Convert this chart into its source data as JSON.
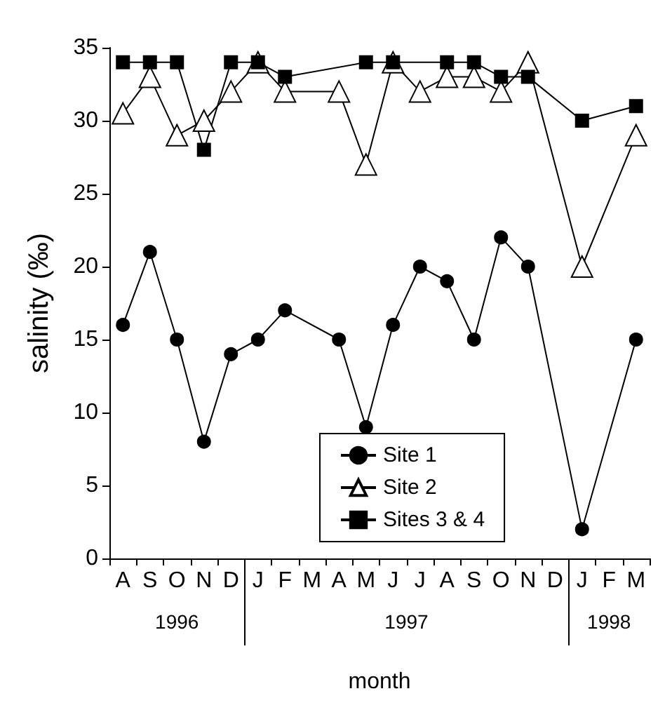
{
  "chart_data": {
    "type": "line",
    "xlabel": "month",
    "ylabel": "salinity (‰)",
    "categories": [
      "A",
      "S",
      "O",
      "N",
      "D",
      "J",
      "F",
      "M",
      "A",
      "M",
      "J",
      "J",
      "A",
      "S",
      "O",
      "N",
      "D",
      "J",
      "F",
      "M"
    ],
    "ylim": [
      0,
      35
    ],
    "yticks": [
      0,
      5,
      10,
      15,
      20,
      25,
      30,
      35
    ],
    "series": [
      {
        "name": "Site 1",
        "color": "#000000",
        "marker": "circle",
        "values": [
          16,
          21,
          15,
          8,
          14,
          15,
          17,
          null,
          15,
          9,
          16,
          20,
          19,
          15,
          22,
          20,
          null,
          2,
          null,
          15
        ]
      },
      {
        "name": "Site 2",
        "color": "#000000",
        "marker": "triangle",
        "values": [
          30.5,
          33,
          29,
          30,
          32,
          34,
          32,
          null,
          32,
          27,
          34,
          32,
          33,
          33,
          32,
          34,
          null,
          20,
          null,
          29
        ]
      },
      {
        "name": "Sites 3 & 4",
        "color": "#000000",
        "marker": "square",
        "values": [
          34,
          34,
          34,
          28,
          34,
          34,
          33,
          null,
          null,
          34,
          34,
          null,
          34,
          34,
          33,
          33,
          null,
          30,
          null,
          31
        ]
      }
    ],
    "annotations": [
      "1996",
      "1997",
      "1998"
    ],
    "legend": "bottom",
    "grid": false,
    "line_style": "solid"
  }
}
